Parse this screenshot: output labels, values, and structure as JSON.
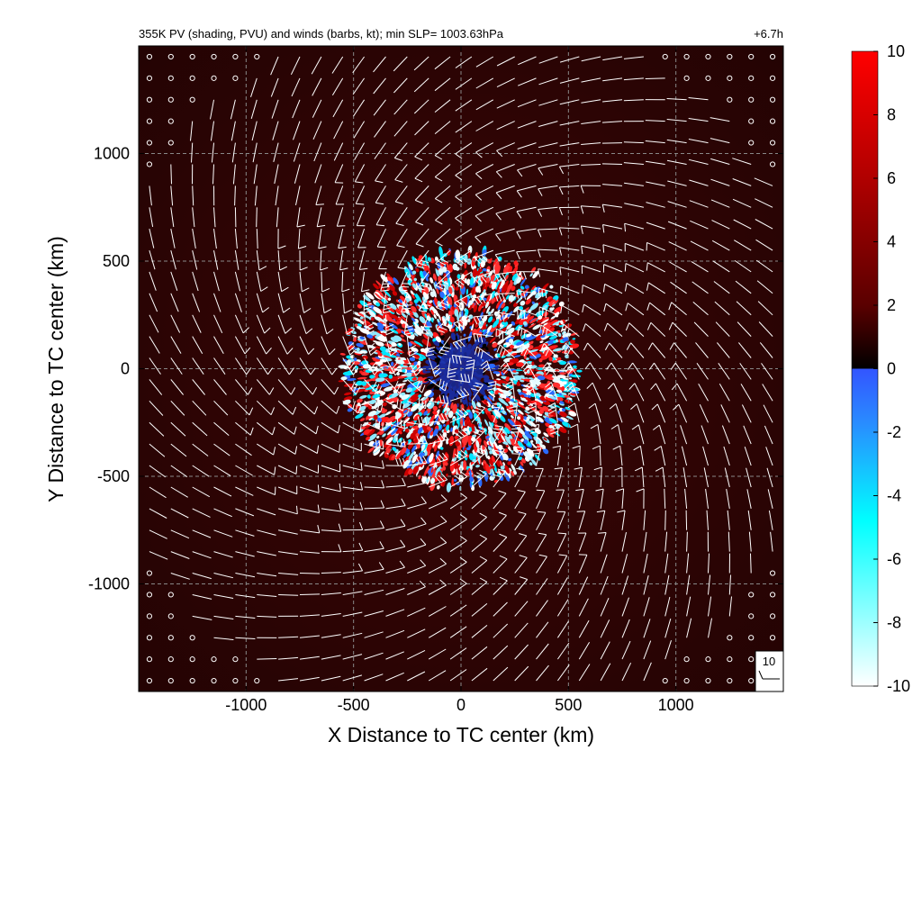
{
  "chart_data": {
    "type": "heatmap",
    "title": "355K PV (shading, PVU) and winds (barbs, kt); min SLP= 1003.63hPa",
    "time_label": "+6.7h",
    "xlabel": "X Distance to TC center (km)",
    "ylabel": "Y Distance to TC center (km)",
    "xlim": [
      -1500,
      1500
    ],
    "ylim": [
      -1500,
      1500
    ],
    "x_ticks": [
      -1000,
      -500,
      0,
      500,
      1000
    ],
    "y_ticks": [
      -1000,
      -500,
      0,
      500,
      1000
    ],
    "x_tick_labels": [
      "-1000",
      "-500",
      "0",
      "500",
      "1000"
    ],
    "y_tick_labels": [
      "-1000",
      "-500",
      "0",
      "500",
      "1000"
    ],
    "grid": true,
    "grid_style": "dashed",
    "colorbar": {
      "min": -10,
      "max": 10,
      "ticks": [
        10,
        8,
        6,
        4,
        2,
        0,
        -2,
        -4,
        -6,
        -8,
        -10
      ],
      "tick_labels": [
        "10",
        "8",
        "6",
        "4",
        "2",
        "0",
        "-2",
        "-4",
        "-6",
        "-8",
        "-10"
      ],
      "placement": "right"
    },
    "field": {
      "background_value": 1.3,
      "disturbed_radius_km": 560,
      "core_radius_km": 150,
      "core_value": -2
    },
    "wind_barbs": {
      "spacing_km": 100,
      "circulation": "anticyclonic outflow",
      "calm_near_corners": true
    },
    "reference_barb_label": "10",
    "colors": {
      "background_field": "#2a0404",
      "positive_max": "#ff0000",
      "negative_mid": "#00ffff",
      "negative_max": "#ffffff",
      "zero_positive": "#000000",
      "zero_negative": "#3355ff",
      "barb": "#ffffff",
      "grid": "#888888"
    }
  }
}
